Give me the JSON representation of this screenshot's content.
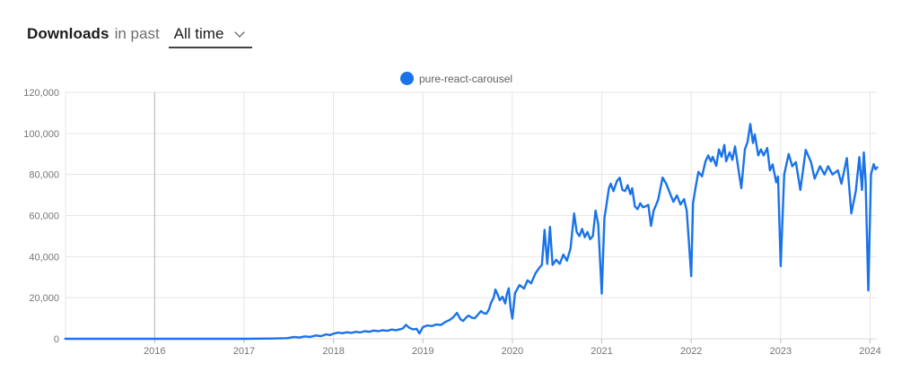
{
  "header": {
    "title": "Downloads",
    "subtitle": "in past",
    "range_value": "All time"
  },
  "legend": {
    "series_label": "pure-react-carousel",
    "marker_color": "#1a73e8"
  },
  "colors": {
    "line": "#1a73e8",
    "grid": "#e6e6e6",
    "grid_emphasis": "#b3b3b3",
    "baseline": "#d9d9d9",
    "tick": "#bdbdbd",
    "axis_text": "#757575"
  },
  "chart_data": {
    "type": "line",
    "title": "",
    "xlabel": "",
    "ylabel": "",
    "grid": true,
    "legend_position": "top-center",
    "x_ticks": [
      2016,
      2017,
      2018,
      2019,
      2020,
      2021,
      2022,
      2023,
      2024
    ],
    "emphasized_x_tick": 2016,
    "y_ticks": [
      0,
      20000,
      40000,
      60000,
      80000,
      100000,
      120000
    ],
    "x_range": [
      2015.0,
      2024.1
    ],
    "y_range": [
      0,
      120000
    ],
    "series": [
      {
        "name": "pure-react-carousel",
        "color": "#1a73e8",
        "points": [
          [
            2015.0,
            0
          ],
          [
            2015.5,
            0
          ],
          [
            2016.0,
            0
          ],
          [
            2016.5,
            0
          ],
          [
            2017.0,
            0
          ],
          [
            2017.3,
            150
          ],
          [
            2017.48,
            300
          ],
          [
            2017.56,
            900
          ],
          [
            2017.62,
            600
          ],
          [
            2017.68,
            1200
          ],
          [
            2017.74,
            900
          ],
          [
            2017.8,
            1600
          ],
          [
            2017.86,
            1300
          ],
          [
            2017.92,
            2200
          ],
          [
            2017.96,
            1800
          ],
          [
            2018.0,
            2500
          ],
          [
            2018.05,
            3000
          ],
          [
            2018.1,
            2700
          ],
          [
            2018.15,
            3200
          ],
          [
            2018.2,
            2900
          ],
          [
            2018.25,
            3400
          ],
          [
            2018.3,
            3100
          ],
          [
            2018.35,
            3700
          ],
          [
            2018.4,
            3400
          ],
          [
            2018.45,
            4000
          ],
          [
            2018.5,
            3700
          ],
          [
            2018.55,
            4200
          ],
          [
            2018.6,
            3900
          ],
          [
            2018.65,
            4500
          ],
          [
            2018.7,
            4200
          ],
          [
            2018.75,
            4700
          ],
          [
            2018.78,
            5200
          ],
          [
            2018.81,
            6800
          ],
          [
            2018.85,
            5300
          ],
          [
            2018.89,
            4600
          ],
          [
            2018.93,
            4900
          ],
          [
            2018.96,
            2600
          ],
          [
            2019.0,
            5700
          ],
          [
            2019.05,
            6500
          ],
          [
            2019.1,
            6200
          ],
          [
            2019.15,
            7000
          ],
          [
            2019.2,
            6700
          ],
          [
            2019.25,
            8200
          ],
          [
            2019.3,
            9200
          ],
          [
            2019.34,
            10500
          ],
          [
            2019.38,
            12600
          ],
          [
            2019.42,
            9500
          ],
          [
            2019.45,
            8700
          ],
          [
            2019.48,
            10200
          ],
          [
            2019.51,
            11300
          ],
          [
            2019.55,
            10200
          ],
          [
            2019.58,
            10000
          ],
          [
            2019.62,
            12000
          ],
          [
            2019.65,
            13500
          ],
          [
            2019.68,
            12500
          ],
          [
            2019.71,
            12200
          ],
          [
            2019.74,
            14500
          ],
          [
            2019.76,
            17400
          ],
          [
            2019.79,
            20000
          ],
          [
            2019.81,
            24000
          ],
          [
            2019.84,
            21000
          ],
          [
            2019.86,
            18800
          ],
          [
            2019.89,
            20500
          ],
          [
            2019.92,
            17200
          ],
          [
            2019.94,
            22000
          ],
          [
            2019.96,
            24600
          ],
          [
            2019.98,
            15000
          ],
          [
            2020.0,
            9800
          ],
          [
            2020.03,
            22300
          ],
          [
            2020.08,
            26200
          ],
          [
            2020.13,
            24500
          ],
          [
            2020.17,
            28500
          ],
          [
            2020.21,
            27000
          ],
          [
            2020.26,
            32000
          ],
          [
            2020.3,
            34500
          ],
          [
            2020.33,
            36000
          ],
          [
            2020.36,
            53000
          ],
          [
            2020.39,
            36500
          ],
          [
            2020.42,
            54500
          ],
          [
            2020.45,
            36000
          ],
          [
            2020.49,
            38500
          ],
          [
            2020.53,
            36500
          ],
          [
            2020.57,
            41000
          ],
          [
            2020.61,
            38000
          ],
          [
            2020.65,
            44000
          ],
          [
            2020.69,
            61000
          ],
          [
            2020.72,
            52000
          ],
          [
            2020.75,
            50000
          ],
          [
            2020.78,
            53500
          ],
          [
            2020.81,
            49500
          ],
          [
            2020.84,
            52000
          ],
          [
            2020.87,
            48500
          ],
          [
            2020.9,
            50000
          ],
          [
            2020.93,
            62400
          ],
          [
            2020.96,
            55800
          ],
          [
            2021.0,
            22000
          ],
          [
            2021.03,
            58900
          ],
          [
            2021.05,
            64500
          ],
          [
            2021.08,
            73300
          ],
          [
            2021.1,
            75500
          ],
          [
            2021.13,
            71900
          ],
          [
            2021.17,
            76900
          ],
          [
            2021.2,
            78400
          ],
          [
            2021.23,
            72500
          ],
          [
            2021.26,
            71900
          ],
          [
            2021.29,
            74800
          ],
          [
            2021.32,
            70400
          ],
          [
            2021.34,
            73300
          ],
          [
            2021.37,
            64500
          ],
          [
            2021.4,
            63100
          ],
          [
            2021.43,
            66000
          ],
          [
            2021.46,
            64000
          ],
          [
            2021.49,
            64500
          ],
          [
            2021.52,
            65200
          ],
          [
            2021.55,
            55000
          ],
          [
            2021.58,
            62400
          ],
          [
            2021.63,
            67600
          ],
          [
            2021.68,
            78500
          ],
          [
            2021.72,
            75500
          ],
          [
            2021.76,
            71100
          ],
          [
            2021.8,
            66700
          ],
          [
            2021.84,
            69800
          ],
          [
            2021.88,
            65400
          ],
          [
            2021.92,
            68000
          ],
          [
            2021.95,
            62400
          ],
          [
            2022.0,
            30500
          ],
          [
            2022.02,
            66000
          ],
          [
            2022.05,
            74000
          ],
          [
            2022.08,
            81300
          ],
          [
            2022.12,
            79100
          ],
          [
            2022.16,
            86400
          ],
          [
            2022.19,
            89300
          ],
          [
            2022.22,
            86400
          ],
          [
            2022.24,
            88600
          ],
          [
            2022.28,
            84200
          ],
          [
            2022.31,
            92200
          ],
          [
            2022.34,
            88600
          ],
          [
            2022.37,
            94400
          ],
          [
            2022.39,
            86400
          ],
          [
            2022.43,
            90800
          ],
          [
            2022.46,
            87100
          ],
          [
            2022.49,
            93700
          ],
          [
            2022.53,
            82000
          ],
          [
            2022.56,
            73300
          ],
          [
            2022.6,
            92200
          ],
          [
            2022.63,
            95900
          ],
          [
            2022.66,
            104600
          ],
          [
            2022.69,
            95300
          ],
          [
            2022.71,
            99500
          ],
          [
            2022.75,
            89300
          ],
          [
            2022.78,
            92200
          ],
          [
            2022.81,
            89300
          ],
          [
            2022.85,
            92900
          ],
          [
            2022.88,
            82000
          ],
          [
            2022.91,
            84900
          ],
          [
            2022.95,
            76200
          ],
          [
            2022.97,
            79000
          ],
          [
            2023.0,
            35400
          ],
          [
            2023.04,
            80000
          ],
          [
            2023.06,
            84000
          ],
          [
            2023.09,
            90000
          ],
          [
            2023.13,
            84000
          ],
          [
            2023.17,
            86000
          ],
          [
            2023.22,
            72500
          ],
          [
            2023.28,
            92000
          ],
          [
            2023.34,
            86000
          ],
          [
            2023.38,
            78000
          ],
          [
            2023.44,
            84000
          ],
          [
            2023.49,
            80000
          ],
          [
            2023.53,
            84000
          ],
          [
            2023.58,
            80000
          ],
          [
            2023.64,
            82000
          ],
          [
            2023.68,
            75500
          ],
          [
            2023.74,
            88000
          ],
          [
            2023.79,
            61000
          ],
          [
            2023.84,
            72000
          ],
          [
            2023.88,
            88500
          ],
          [
            2023.91,
            72500
          ],
          [
            2023.93,
            90700
          ],
          [
            2023.95,
            77000
          ],
          [
            2023.98,
            23500
          ],
          [
            2024.01,
            80000
          ],
          [
            2024.04,
            85000
          ],
          [
            2024.06,
            82500
          ],
          [
            2024.08,
            83500
          ]
        ]
      }
    ]
  }
}
